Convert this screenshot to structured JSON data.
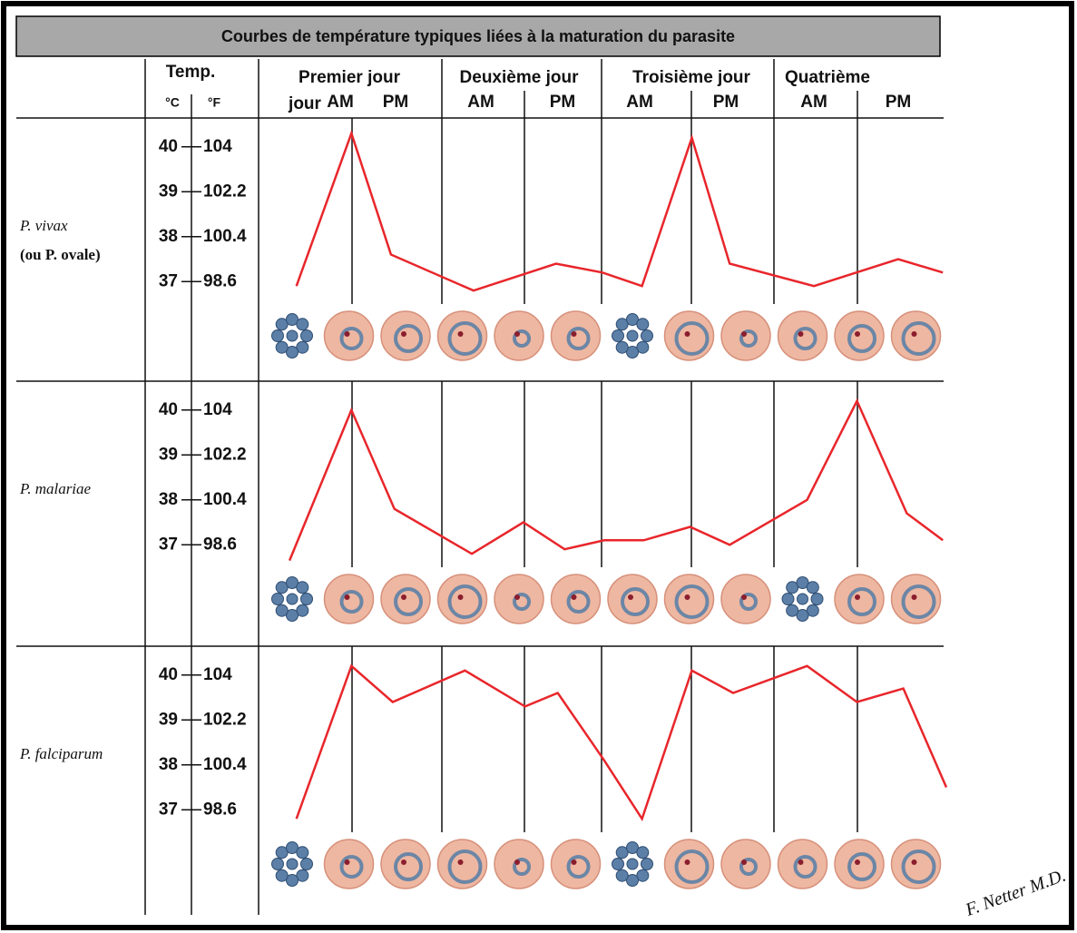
{
  "title": "Courbes de température typiques liées à la maturation du parasite",
  "header": {
    "temp": "Temp.",
    "celsius": "°C",
    "fahrenheit": "°F",
    "days": [
      "Premier jour",
      "Deuxième jour",
      "Troisième jour",
      "Quatrième"
    ],
    "extra": "jour",
    "periods": [
      "AM",
      "PM",
      "AM",
      "PM",
      "AM",
      "PM",
      "AM",
      "PM"
    ]
  },
  "signature": "F. Netter M.D.",
  "chart_data": [
    {
      "type": "line",
      "title": "P. vivax",
      "subtitle": "(ou P. ovale)",
      "x": [
        0.22,
        0.54,
        0.77,
        1.25,
        1.73,
        2.0,
        2.23,
        2.52,
        2.74,
        3.23,
        3.72,
        3.98
      ],
      "values": [
        36.9,
        40.3,
        37.6,
        36.8,
        37.4,
        37.2,
        36.9,
        40.2,
        37.4,
        36.9,
        37.5,
        37.2
      ],
      "color": "#e8262b",
      "xlim": [
        0,
        4
      ],
      "ylim": [
        36.5,
        40.5
      ],
      "yticks": [
        37,
        38,
        39,
        40
      ],
      "y2lim": [
        97.7,
        104.9
      ],
      "y2ticks": [
        98.6,
        100.4,
        102.2,
        104
      ]
    },
    {
      "type": "line",
      "title": "P. malariae",
      "x": [
        0.18,
        0.54,
        0.79,
        1.24,
        1.54,
        1.78,
        2.01,
        2.24,
        2.51,
        2.74,
        3.19,
        3.48,
        3.77,
        3.98
      ],
      "values": [
        36.65,
        40.0,
        37.8,
        36.8,
        37.5,
        36.9,
        37.1,
        37.1,
        37.4,
        37.0,
        38.0,
        40.2,
        37.7,
        37.1
      ],
      "color": "#e8262b",
      "xlim": [
        0,
        4
      ],
      "ylim": [
        36.5,
        40.5
      ],
      "yticks": [
        37,
        38,
        39,
        40
      ],
      "y2lim": [
        97.7,
        104.9
      ],
      "y2ticks": [
        98.6,
        100.4,
        102.2,
        104
      ]
    },
    {
      "type": "line",
      "title": "P. falciparum",
      "x": [
        0.22,
        0.54,
        0.78,
        1.2,
        1.55,
        1.74,
        2.01,
        2.23,
        2.52,
        2.76,
        3.19,
        3.48,
        3.75,
        4.0
      ],
      "values": [
        36.8,
        40.2,
        39.4,
        40.1,
        39.3,
        39.6,
        38.1,
        36.8,
        40.1,
        39.6,
        40.2,
        39.4,
        39.7,
        37.5
      ],
      "color": "#e8262b",
      "xlim": [
        0,
        4
      ],
      "ylim": [
        36.5,
        40.5
      ],
      "yticks": [
        37,
        38,
        39,
        40
      ],
      "y2lim": [
        97.7,
        104.9
      ],
      "y2ticks": [
        98.6,
        100.4,
        102.2,
        104
      ]
    }
  ]
}
